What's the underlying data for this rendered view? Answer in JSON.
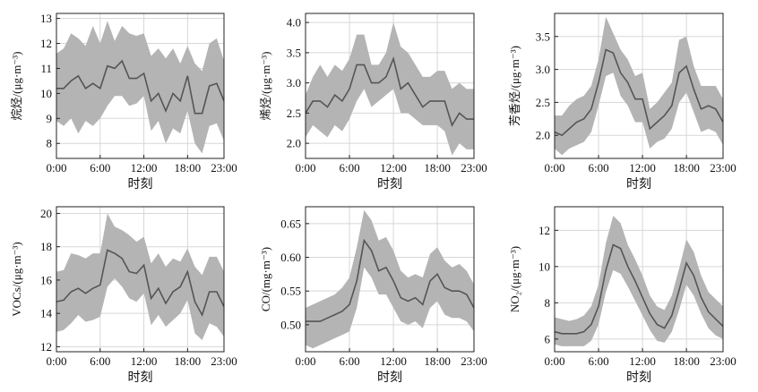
{
  "colors": {
    "band": "#b4b4b4",
    "line": "#555555",
    "grid": "#d7d7d7",
    "axis": "#222222"
  },
  "chart_data": [
    {
      "type": "line",
      "ylabel": "烷烃/(μg·m⁻³)",
      "xlabel": "时刻",
      "xticks": [
        "0:00",
        "6:00",
        "12:00",
        "18:00",
        "23:00"
      ],
      "yticks": [
        "8",
        "9",
        "10",
        "11",
        "12",
        "13"
      ],
      "ylim": [
        7.4,
        13.2
      ],
      "grid": true,
      "x": [
        0,
        1,
        2,
        3,
        4,
        5,
        6,
        7,
        8,
        9,
        10,
        11,
        12,
        13,
        14,
        15,
        16,
        17,
        18,
        19,
        20,
        21,
        22,
        23
      ],
      "mean": [
        10.2,
        10.2,
        10.5,
        10.7,
        10.2,
        10.4,
        10.2,
        11.1,
        11.0,
        11.3,
        10.6,
        10.6,
        10.8,
        9.7,
        10.0,
        9.3,
        10.0,
        9.7,
        10.7,
        9.2,
        9.2,
        10.3,
        10.4,
        9.7
      ],
      "upper": [
        11.6,
        11.8,
        12.4,
        12.2,
        11.9,
        12.7,
        12.0,
        12.9,
        12.1,
        12.7,
        12.4,
        12.3,
        12.4,
        11.5,
        11.8,
        11.4,
        11.8,
        11.2,
        11.9,
        11.2,
        10.9,
        12.0,
        12.2,
        11.3
      ],
      "lower": [
        8.9,
        8.7,
        9.0,
        8.4,
        8.9,
        8.7,
        9.0,
        9.5,
        9.9,
        9.9,
        9.5,
        9.6,
        9.9,
        8.5,
        8.9,
        8.0,
        8.6,
        8.4,
        9.3,
        8.0,
        7.6,
        8.7,
        8.8,
        8.1
      ]
    },
    {
      "type": "line",
      "ylabel": "烯烃/(μg·m⁻³)",
      "xlabel": "时刻",
      "xticks": [
        "0:00",
        "6:00",
        "12:00",
        "18:00",
        "23:00"
      ],
      "yticks": [
        "2.0",
        "2.5",
        "3.0",
        "3.5",
        "4.0"
      ],
      "ylim": [
        1.75,
        4.15
      ],
      "grid": true,
      "x": [
        0,
        1,
        2,
        3,
        4,
        5,
        6,
        7,
        8,
        9,
        10,
        11,
        12,
        13,
        14,
        15,
        16,
        17,
        18,
        19,
        20,
        21,
        22,
        23
      ],
      "mean": [
        2.5,
        2.7,
        2.7,
        2.6,
        2.8,
        2.7,
        2.9,
        3.3,
        3.3,
        3.0,
        3.0,
        3.1,
        3.4,
        2.9,
        3.0,
        2.8,
        2.6,
        2.7,
        2.7,
        2.7,
        2.3,
        2.5,
        2.4,
        2.4
      ],
      "upper": [
        2.8,
        3.1,
        3.3,
        3.1,
        3.3,
        3.2,
        3.4,
        3.8,
        3.8,
        3.3,
        3.3,
        3.5,
        4.0,
        3.6,
        3.5,
        3.3,
        3.1,
        3.1,
        3.2,
        3.2,
        2.9,
        3.0,
        2.9,
        2.9
      ],
      "lower": [
        2.1,
        2.3,
        2.2,
        2.1,
        2.3,
        2.2,
        2.4,
        2.7,
        2.9,
        2.6,
        2.7,
        2.8,
        2.9,
        2.5,
        2.5,
        2.4,
        2.3,
        2.3,
        2.3,
        2.2,
        1.8,
        2.0,
        1.9,
        1.9
      ]
    },
    {
      "type": "line",
      "ylabel": "芳香烃/(μg·m⁻³)",
      "xlabel": "时刻",
      "xticks": [
        "0:00",
        "6:00",
        "12:00",
        "18:00",
        "23:00"
      ],
      "yticks": [
        "2.0",
        "2.5",
        "3.0",
        "3.5"
      ],
      "ylim": [
        1.65,
        3.85
      ],
      "grid": true,
      "x": [
        0,
        1,
        2,
        3,
        4,
        5,
        6,
        7,
        8,
        9,
        10,
        11,
        12,
        13,
        14,
        15,
        16,
        17,
        18,
        19,
        20,
        21,
        22,
        23
      ],
      "mean": [
        2.05,
        2.0,
        2.1,
        2.2,
        2.25,
        2.4,
        2.8,
        3.3,
        3.25,
        2.95,
        2.8,
        2.55,
        2.55,
        2.1,
        2.2,
        2.3,
        2.45,
        2.95,
        3.05,
        2.7,
        2.4,
        2.45,
        2.4,
        2.2
      ],
      "upper": [
        2.3,
        2.3,
        2.45,
        2.55,
        2.6,
        2.75,
        3.15,
        3.8,
        3.55,
        3.3,
        3.15,
        2.9,
        2.95,
        2.4,
        2.5,
        2.65,
        2.8,
        3.45,
        3.5,
        3.05,
        2.75,
        2.75,
        2.75,
        2.55
      ],
      "lower": [
        1.8,
        1.7,
        1.8,
        1.85,
        1.9,
        2.05,
        2.45,
        2.9,
        2.95,
        2.6,
        2.45,
        2.2,
        2.2,
        1.8,
        1.9,
        1.95,
        2.1,
        2.5,
        2.65,
        2.35,
        2.05,
        2.1,
        2.05,
        1.85
      ]
    },
    {
      "type": "line",
      "ylabel": "VOCs/(μg·m⁻³)",
      "xlabel": "时刻",
      "xticks": [
        "0:00",
        "6:00",
        "12:00",
        "18:00",
        "23:00"
      ],
      "yticks": [
        "12",
        "14",
        "16",
        "18",
        "20"
      ],
      "ylim": [
        11.7,
        20.4
      ],
      "grid": true,
      "x": [
        0,
        1,
        2,
        3,
        4,
        5,
        6,
        7,
        8,
        9,
        10,
        11,
        12,
        13,
        14,
        15,
        16,
        17,
        18,
        19,
        20,
        21,
        22,
        23
      ],
      "mean": [
        14.7,
        14.8,
        15.3,
        15.5,
        15.2,
        15.5,
        15.7,
        17.8,
        17.6,
        17.3,
        16.5,
        16.4,
        16.9,
        14.9,
        15.5,
        14.6,
        15.3,
        15.6,
        16.5,
        14.7,
        13.9,
        15.3,
        15.3,
        14.4
      ],
      "upper": [
        16.5,
        16.6,
        17.6,
        17.5,
        17.3,
        17.6,
        17.6,
        20.0,
        19.2,
        19.0,
        18.7,
        18.3,
        18.6,
        17.0,
        17.6,
        16.8,
        17.3,
        17.1,
        17.9,
        16.8,
        16.3,
        17.4,
        17.4,
        16.5
      ],
      "lower": [
        12.9,
        13.0,
        13.4,
        13.9,
        13.5,
        13.6,
        13.8,
        15.6,
        16.1,
        15.6,
        14.9,
        14.7,
        15.2,
        13.3,
        13.9,
        13.2,
        13.6,
        14.0,
        14.8,
        12.8,
        12.4,
        13.4,
        13.2,
        12.6
      ]
    },
    {
      "type": "line",
      "ylabel": "CO/(mg·m⁻³)",
      "xlabel": "时刻",
      "xticks": [
        "0:00",
        "6:00",
        "12:00",
        "18:00",
        "23:00"
      ],
      "yticks": [
        "0.50",
        "0.55",
        "0.60",
        "0.65"
      ],
      "ylim": [
        0.46,
        0.675
      ],
      "grid": true,
      "x": [
        0,
        1,
        2,
        3,
        4,
        5,
        6,
        7,
        8,
        9,
        10,
        11,
        12,
        13,
        14,
        15,
        16,
        17,
        18,
        19,
        20,
        21,
        22,
        23
      ],
      "mean": [
        0.505,
        0.505,
        0.505,
        0.51,
        0.515,
        0.52,
        0.53,
        0.565,
        0.625,
        0.61,
        0.58,
        0.585,
        0.565,
        0.54,
        0.535,
        0.54,
        0.53,
        0.565,
        0.575,
        0.555,
        0.55,
        0.55,
        0.545,
        0.525
      ],
      "upper": [
        0.525,
        0.53,
        0.535,
        0.54,
        0.545,
        0.555,
        0.57,
        0.615,
        0.67,
        0.655,
        0.625,
        0.63,
        0.61,
        0.58,
        0.57,
        0.575,
        0.57,
        0.605,
        0.615,
        0.595,
        0.585,
        0.59,
        0.58,
        0.56
      ],
      "lower": [
        0.47,
        0.465,
        0.47,
        0.475,
        0.48,
        0.485,
        0.49,
        0.525,
        0.585,
        0.57,
        0.545,
        0.545,
        0.525,
        0.505,
        0.5,
        0.505,
        0.495,
        0.525,
        0.535,
        0.515,
        0.51,
        0.51,
        0.505,
        0.49
      ]
    },
    {
      "type": "line",
      "ylabel": "NO₂/(μg·m⁻³)",
      "xlabel": "时刻",
      "xticks": [
        "0:00",
        "6:00",
        "12:00",
        "18:00",
        "23:00"
      ],
      "yticks": [
        "6",
        "8",
        "10",
        "12"
      ],
      "ylim": [
        5.3,
        13.3
      ],
      "grid": true,
      "x": [
        0,
        1,
        2,
        3,
        4,
        5,
        6,
        7,
        8,
        9,
        10,
        11,
        12,
        13,
        14,
        15,
        16,
        17,
        18,
        19,
        20,
        21,
        22,
        23
      ],
      "mean": [
        6.4,
        6.3,
        6.3,
        6.3,
        6.4,
        6.8,
        7.8,
        9.8,
        11.2,
        11.0,
        10.0,
        9.2,
        8.3,
        7.4,
        6.8,
        6.6,
        7.3,
        8.7,
        10.2,
        9.5,
        8.3,
        7.5,
        7.1,
        6.7
      ],
      "upper": [
        7.2,
        7.1,
        7.0,
        7.1,
        7.3,
        7.8,
        9.0,
        11.3,
        12.8,
        12.4,
        11.2,
        10.4,
        9.5,
        8.4,
        7.8,
        7.6,
        8.4,
        9.9,
        11.5,
        10.8,
        9.5,
        8.6,
        8.2,
        7.8
      ],
      "lower": [
        5.7,
        5.6,
        5.6,
        5.6,
        5.6,
        5.9,
        6.8,
        8.6,
        9.8,
        9.6,
        8.9,
        8.1,
        7.3,
        6.5,
        5.9,
        5.8,
        6.4,
        7.6,
        9.0,
        8.4,
        7.4,
        6.6,
        6.2,
        6.0
      ]
    }
  ]
}
